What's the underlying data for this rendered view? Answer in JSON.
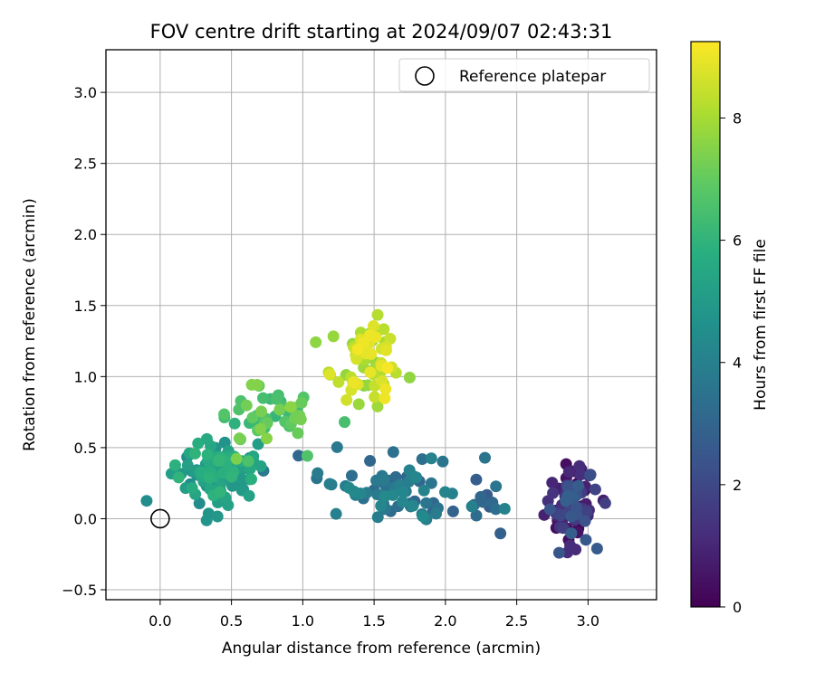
{
  "chart_data": {
    "type": "scatter",
    "title": "FOV centre drift starting at 2024/09/07 02:43:31",
    "xlabel": "Angular distance from reference (arcmin)",
    "ylabel": "Rotation from reference (arcmin)",
    "xlim": [
      -0.38,
      3.48
    ],
    "ylim": [
      -0.57,
      3.3
    ],
    "xticks": [
      "0.0",
      "0.5",
      "1.0",
      "1.5",
      "2.0",
      "2.5",
      "3.0"
    ],
    "xtick_values": [
      0,
      0.5,
      1.0,
      1.5,
      2.0,
      2.5,
      3.0
    ],
    "yticks": [
      "−0.5",
      "0.0",
      "0.5",
      "1.0",
      "1.5",
      "2.0",
      "2.5",
      "3.0"
    ],
    "ytick_values": [
      -0.5,
      0,
      0.5,
      1.0,
      1.5,
      2.0,
      2.5,
      3.0
    ],
    "grid": true,
    "legend": {
      "position": "top-right",
      "entries": [
        "Reference platepar"
      ]
    },
    "reference_point": {
      "name": "Reference platepar",
      "x": 0.0,
      "y": 0.0
    },
    "colorbar": {
      "label": "Hours from first FF file",
      "range": [
        0,
        9.25
      ],
      "ticks": [
        "0",
        "2",
        "4",
        "6",
        "8"
      ],
      "tick_values": [
        0,
        2,
        4,
        6,
        8
      ],
      "colormap": "viridis"
    },
    "clusters": [
      {
        "hours": [
          0.1,
          2.8
        ],
        "center": [
          2.88,
          0.1
        ],
        "spread": [
          0.13,
          0.2
        ],
        "count": 90
      },
      {
        "hours": [
          3.0,
          4.4
        ],
        "center": [
          1.65,
          0.2
        ],
        "spread": [
          0.38,
          0.17
        ],
        "count": 75
      },
      {
        "hours": [
          2.6,
          3.4
        ],
        "center": [
          2.3,
          0.1
        ],
        "spread": [
          0.15,
          0.12
        ],
        "count": 10
      },
      {
        "hours": [
          4.4,
          6.1
        ],
        "center": [
          0.38,
          0.32
        ],
        "spread": [
          0.2,
          0.18
        ],
        "count": 110
      },
      {
        "hours": [
          6.0,
          7.6
        ],
        "center": [
          0.72,
          0.72
        ],
        "spread": [
          0.25,
          0.15
        ],
        "count": 50
      },
      {
        "hours": [
          7.5,
          9.2
        ],
        "center": [
          1.45,
          1.1
        ],
        "spread": [
          0.18,
          0.2
        ],
        "count": 70
      }
    ]
  }
}
